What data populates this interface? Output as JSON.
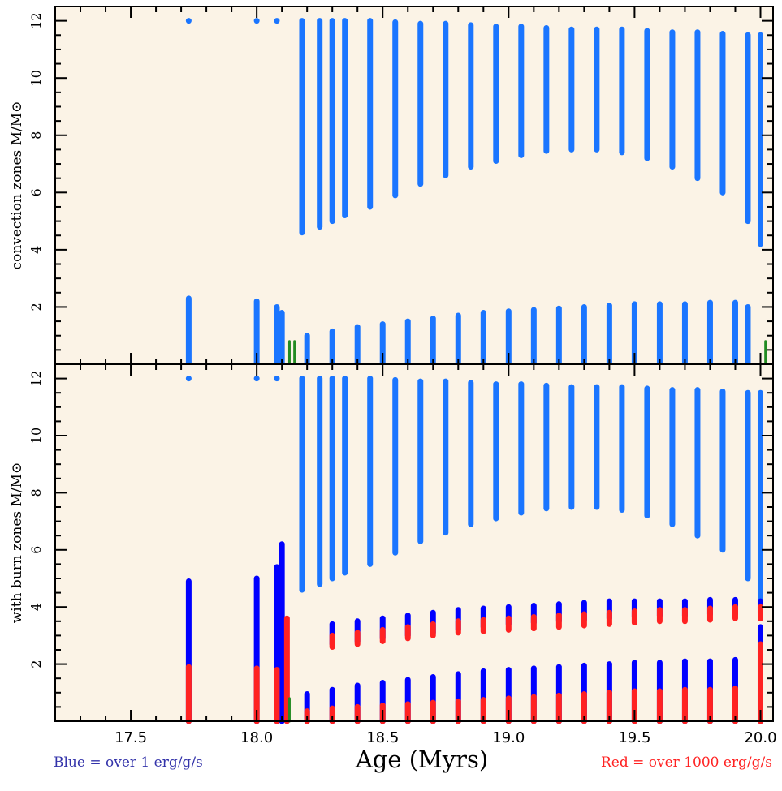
{
  "chart_data": [
    {
      "type": "kippenhahn",
      "title": "",
      "xlabel": "Age (Myrs)",
      "ylabel": "convection zones M/M⊙",
      "xlim": [
        17.2,
        20.05
      ],
      "ylim": [
        0,
        12.5
      ],
      "x_ticks": [
        17.5,
        18.0,
        18.5,
        19.0,
        19.5,
        20.0
      ],
      "x_tick_labels": [],
      "y_ticks": [
        2,
        4,
        6,
        8,
        10,
        12
      ],
      "y_tick_labels": [
        "2",
        "4",
        "6",
        "8",
        "10",
        "12"
      ],
      "background": "#fbf3e6",
      "series": [
        {
          "name": "convection",
          "color": "#1a75ff",
          "isolated_points": [
            [
              17.73,
              12.0
            ],
            [
              18.0,
              12.0
            ],
            [
              18.08,
              12.0
            ]
          ],
          "upper_segments": [
            [
              18.18,
              12.0,
              4.6
            ],
            [
              18.25,
              12.0,
              4.8
            ],
            [
              18.3,
              12.0,
              5.0
            ],
            [
              18.35,
              12.0,
              5.2
            ],
            [
              18.45,
              12.0,
              5.5
            ],
            [
              18.55,
              11.95,
              5.9
            ],
            [
              18.65,
              11.9,
              6.3
            ],
            [
              18.75,
              11.9,
              6.6
            ],
            [
              18.85,
              11.85,
              6.9
            ],
            [
              18.95,
              11.8,
              7.1
            ],
            [
              19.05,
              11.8,
              7.3
            ],
            [
              19.15,
              11.75,
              7.45
            ],
            [
              19.25,
              11.7,
              7.5
            ],
            [
              19.35,
              11.7,
              7.5
            ],
            [
              19.45,
              11.7,
              7.4
            ],
            [
              19.55,
              11.65,
              7.2
            ],
            [
              19.65,
              11.6,
              6.9
            ],
            [
              19.75,
              11.6,
              6.5
            ],
            [
              19.85,
              11.55,
              6.0
            ],
            [
              19.95,
              11.5,
              5.0
            ],
            [
              20.0,
              11.5,
              4.2
            ]
          ],
          "lower_segments": [
            [
              17.73,
              2.3,
              0
            ],
            [
              18.0,
              2.2,
              0
            ],
            [
              18.08,
              2.0,
              0
            ],
            [
              18.1,
              1.8,
              0
            ],
            [
              18.2,
              1.0,
              0
            ],
            [
              18.3,
              1.15,
              0
            ],
            [
              18.4,
              1.3,
              0
            ],
            [
              18.5,
              1.4,
              0
            ],
            [
              18.6,
              1.5,
              0
            ],
            [
              18.7,
              1.6,
              0
            ],
            [
              18.8,
              1.7,
              0
            ],
            [
              18.9,
              1.8,
              0
            ],
            [
              19.0,
              1.85,
              0
            ],
            [
              19.1,
              1.9,
              0
            ],
            [
              19.2,
              1.95,
              0
            ],
            [
              19.3,
              2.0,
              0
            ],
            [
              19.4,
              2.05,
              0
            ],
            [
              19.5,
              2.1,
              0
            ],
            [
              19.6,
              2.1,
              0
            ],
            [
              19.7,
              2.1,
              0
            ],
            [
              19.8,
              2.15,
              0
            ],
            [
              19.9,
              2.15,
              0
            ],
            [
              19.95,
              2.0,
              0
            ]
          ]
        },
        {
          "name": "green",
          "color": "#228b22",
          "segments": [
            [
              18.13,
              0.8,
              0
            ],
            [
              18.15,
              0.8,
              0
            ],
            [
              20.02,
              0.8,
              0
            ]
          ]
        }
      ]
    },
    {
      "type": "kippenhahn",
      "title": "",
      "xlabel": "Age (Myrs)",
      "ylabel": "with burn zones M/M⊙",
      "xlim": [
        17.2,
        20.05
      ],
      "ylim": [
        0,
        12.5
      ],
      "x_ticks": [
        17.5,
        18.0,
        18.5,
        19.0,
        19.5,
        20.0
      ],
      "x_tick_labels": [
        "17.5",
        "18.0",
        "18.5",
        "19.0",
        "19.5",
        "20.0"
      ],
      "y_ticks": [
        2,
        4,
        6,
        8,
        10,
        12
      ],
      "y_tick_labels": [
        "2",
        "4",
        "6",
        "8",
        "10",
        "12"
      ],
      "background": "#fbf3e6",
      "series": [
        {
          "name": "convection",
          "color": "#1a75ff",
          "isolated_points": [
            [
              17.73,
              12.0
            ],
            [
              18.0,
              12.0
            ],
            [
              18.08,
              12.0
            ]
          ],
          "upper_segments": [
            [
              18.18,
              12.0,
              4.6
            ],
            [
              18.25,
              12.0,
              4.8
            ],
            [
              18.3,
              12.0,
              5.0
            ],
            [
              18.35,
              12.0,
              5.2
            ],
            [
              18.45,
              12.0,
              5.5
            ],
            [
              18.55,
              11.95,
              5.9
            ],
            [
              18.65,
              11.9,
              6.3
            ],
            [
              18.75,
              11.9,
              6.6
            ],
            [
              18.85,
              11.85,
              6.9
            ],
            [
              18.95,
              11.8,
              7.1
            ],
            [
              19.05,
              11.8,
              7.3
            ],
            [
              19.15,
              11.75,
              7.45
            ],
            [
              19.25,
              11.7,
              7.5
            ],
            [
              19.35,
              11.7,
              7.5
            ],
            [
              19.45,
              11.7,
              7.4
            ],
            [
              19.55,
              11.65,
              7.2
            ],
            [
              19.65,
              11.6,
              6.9
            ],
            [
              19.75,
              11.6,
              6.5
            ],
            [
              19.85,
              11.55,
              6.0
            ],
            [
              19.95,
              11.5,
              5.0
            ],
            [
              20.0,
              11.5,
              4.2
            ]
          ]
        },
        {
          "name": "burn over 1 erg/g/s",
          "color": "#0000ff",
          "segments": [
            [
              17.73,
              4.9,
              0
            ],
            [
              18.0,
              5.0,
              0
            ],
            [
              18.08,
              5.4,
              0
            ],
            [
              18.1,
              6.2,
              0
            ],
            [
              18.3,
              3.4,
              2.7
            ],
            [
              18.4,
              3.5,
              2.8
            ],
            [
              18.5,
              3.6,
              2.9
            ],
            [
              18.6,
              3.7,
              3.0
            ],
            [
              18.7,
              3.8,
              3.1
            ],
            [
              18.8,
              3.9,
              3.2
            ],
            [
              18.9,
              3.95,
              3.3
            ],
            [
              19.0,
              4.0,
              3.4
            ],
            [
              19.1,
              4.05,
              3.45
            ],
            [
              19.2,
              4.1,
              3.5
            ],
            [
              19.3,
              4.15,
              3.55
            ],
            [
              19.4,
              4.2,
              3.6
            ],
            [
              19.5,
              4.2,
              3.65
            ],
            [
              19.6,
              4.2,
              3.7
            ],
            [
              19.7,
              4.2,
              3.7
            ],
            [
              19.8,
              4.25,
              3.75
            ],
            [
              19.9,
              4.25,
              3.75
            ],
            [
              20.0,
              4.2,
              3.8
            ],
            [
              18.2,
              0.95,
              0
            ],
            [
              18.3,
              1.1,
              0
            ],
            [
              18.4,
              1.25,
              0
            ],
            [
              18.5,
              1.35,
              0
            ],
            [
              18.6,
              1.45,
              0
            ],
            [
              18.7,
              1.55,
              0
            ],
            [
              18.8,
              1.65,
              0
            ],
            [
              18.9,
              1.75,
              0
            ],
            [
              19.0,
              1.8,
              0
            ],
            [
              19.1,
              1.85,
              0
            ],
            [
              19.2,
              1.9,
              0
            ],
            [
              19.3,
              1.95,
              0
            ],
            [
              19.4,
              2.0,
              0
            ],
            [
              19.5,
              2.05,
              0
            ],
            [
              19.6,
              2.05,
              0
            ],
            [
              19.7,
              2.1,
              0
            ],
            [
              19.8,
              2.1,
              0
            ],
            [
              19.9,
              2.15,
              0
            ],
            [
              20.0,
              3.3,
              0
            ]
          ]
        },
        {
          "name": "burn over 1000 erg/g/s",
          "color": "#ff2222",
          "segments": [
            [
              17.73,
              1.9,
              0
            ],
            [
              18.0,
              1.85,
              0
            ],
            [
              18.08,
              1.8,
              0
            ],
            [
              18.12,
              3.6,
              0
            ],
            [
              18.3,
              3.0,
              2.6
            ],
            [
              18.4,
              3.1,
              2.7
            ],
            [
              18.5,
              3.2,
              2.8
            ],
            [
              18.6,
              3.3,
              2.9
            ],
            [
              18.7,
              3.4,
              3.0
            ],
            [
              18.8,
              3.5,
              3.1
            ],
            [
              18.9,
              3.55,
              3.15
            ],
            [
              19.0,
              3.6,
              3.2
            ],
            [
              19.1,
              3.65,
              3.25
            ],
            [
              19.2,
              3.7,
              3.3
            ],
            [
              19.3,
              3.75,
              3.35
            ],
            [
              19.4,
              3.8,
              3.4
            ],
            [
              19.5,
              3.85,
              3.45
            ],
            [
              19.6,
              3.9,
              3.5
            ],
            [
              19.7,
              3.9,
              3.5
            ],
            [
              19.8,
              3.95,
              3.55
            ],
            [
              19.9,
              4.0,
              3.6
            ],
            [
              20.0,
              4.0,
              3.6
            ],
            [
              18.2,
              0.35,
              0
            ],
            [
              18.3,
              0.45,
              0
            ],
            [
              18.4,
              0.5,
              0
            ],
            [
              18.5,
              0.55,
              0
            ],
            [
              18.6,
              0.6,
              0
            ],
            [
              18.7,
              0.65,
              0
            ],
            [
              18.8,
              0.7,
              0
            ],
            [
              18.9,
              0.75,
              0
            ],
            [
              19.0,
              0.8,
              0
            ],
            [
              19.1,
              0.85,
              0
            ],
            [
              19.2,
              0.9,
              0
            ],
            [
              19.3,
              0.95,
              0
            ],
            [
              19.4,
              1.0,
              0
            ],
            [
              19.5,
              1.05,
              0
            ],
            [
              19.6,
              1.05,
              0
            ],
            [
              19.7,
              1.1,
              0
            ],
            [
              19.8,
              1.1,
              0
            ],
            [
              19.9,
              1.15,
              0
            ],
            [
              20.0,
              2.7,
              0
            ]
          ]
        },
        {
          "name": "green",
          "color": "#228b22",
          "segments": [
            [
              18.13,
              0.8,
              0
            ]
          ]
        }
      ]
    }
  ],
  "notes": {
    "blue": "Blue = over 1 erg/g/s",
    "red": "Red = over 1000 erg/g/s",
    "xlabel": "Age (Myrs)"
  },
  "labels": {
    "top_ylabel": "convection zones M/M",
    "bottom_ylabel": "with burn zones M/M",
    "sun": "⊙"
  }
}
